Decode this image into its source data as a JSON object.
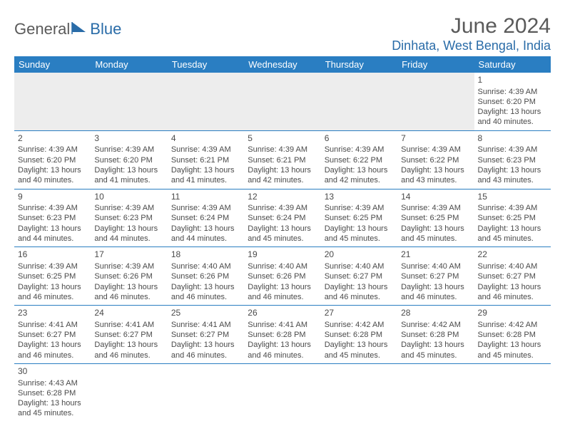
{
  "logo": {
    "text1": "General",
    "text2": "Blue"
  },
  "colors": {
    "header_bg": "#2a7ec2",
    "header_text": "#ffffff",
    "accent": "#2a6ca8",
    "body_text": "#4a4a4a",
    "grid_line": "#2a7ec2",
    "alt_bg": "#ededed"
  },
  "title": "June 2024",
  "location": "Dinhata, West Bengal, India",
  "weekdays": [
    "Sunday",
    "Monday",
    "Tuesday",
    "Wednesday",
    "Thursday",
    "Friday",
    "Saturday"
  ],
  "leading_blanks": 6,
  "days": [
    {
      "n": 1,
      "sunrise": "4:39 AM",
      "sunset": "6:20 PM",
      "daylight": "13 hours and 40 minutes."
    },
    {
      "n": 2,
      "sunrise": "4:39 AM",
      "sunset": "6:20 PM",
      "daylight": "13 hours and 40 minutes."
    },
    {
      "n": 3,
      "sunrise": "4:39 AM",
      "sunset": "6:20 PM",
      "daylight": "13 hours and 41 minutes."
    },
    {
      "n": 4,
      "sunrise": "4:39 AM",
      "sunset": "6:21 PM",
      "daylight": "13 hours and 41 minutes."
    },
    {
      "n": 5,
      "sunrise": "4:39 AM",
      "sunset": "6:21 PM",
      "daylight": "13 hours and 42 minutes."
    },
    {
      "n": 6,
      "sunrise": "4:39 AM",
      "sunset": "6:22 PM",
      "daylight": "13 hours and 42 minutes."
    },
    {
      "n": 7,
      "sunrise": "4:39 AM",
      "sunset": "6:22 PM",
      "daylight": "13 hours and 43 minutes."
    },
    {
      "n": 8,
      "sunrise": "4:39 AM",
      "sunset": "6:23 PM",
      "daylight": "13 hours and 43 minutes."
    },
    {
      "n": 9,
      "sunrise": "4:39 AM",
      "sunset": "6:23 PM",
      "daylight": "13 hours and 44 minutes."
    },
    {
      "n": 10,
      "sunrise": "4:39 AM",
      "sunset": "6:23 PM",
      "daylight": "13 hours and 44 minutes."
    },
    {
      "n": 11,
      "sunrise": "4:39 AM",
      "sunset": "6:24 PM",
      "daylight": "13 hours and 44 minutes."
    },
    {
      "n": 12,
      "sunrise": "4:39 AM",
      "sunset": "6:24 PM",
      "daylight": "13 hours and 45 minutes."
    },
    {
      "n": 13,
      "sunrise": "4:39 AM",
      "sunset": "6:25 PM",
      "daylight": "13 hours and 45 minutes."
    },
    {
      "n": 14,
      "sunrise": "4:39 AM",
      "sunset": "6:25 PM",
      "daylight": "13 hours and 45 minutes."
    },
    {
      "n": 15,
      "sunrise": "4:39 AM",
      "sunset": "6:25 PM",
      "daylight": "13 hours and 45 minutes."
    },
    {
      "n": 16,
      "sunrise": "4:39 AM",
      "sunset": "6:25 PM",
      "daylight": "13 hours and 46 minutes."
    },
    {
      "n": 17,
      "sunrise": "4:39 AM",
      "sunset": "6:26 PM",
      "daylight": "13 hours and 46 minutes."
    },
    {
      "n": 18,
      "sunrise": "4:40 AM",
      "sunset": "6:26 PM",
      "daylight": "13 hours and 46 minutes."
    },
    {
      "n": 19,
      "sunrise": "4:40 AM",
      "sunset": "6:26 PM",
      "daylight": "13 hours and 46 minutes."
    },
    {
      "n": 20,
      "sunrise": "4:40 AM",
      "sunset": "6:27 PM",
      "daylight": "13 hours and 46 minutes."
    },
    {
      "n": 21,
      "sunrise": "4:40 AM",
      "sunset": "6:27 PM",
      "daylight": "13 hours and 46 minutes."
    },
    {
      "n": 22,
      "sunrise": "4:40 AM",
      "sunset": "6:27 PM",
      "daylight": "13 hours and 46 minutes."
    },
    {
      "n": 23,
      "sunrise": "4:41 AM",
      "sunset": "6:27 PM",
      "daylight": "13 hours and 46 minutes."
    },
    {
      "n": 24,
      "sunrise": "4:41 AM",
      "sunset": "6:27 PM",
      "daylight": "13 hours and 46 minutes."
    },
    {
      "n": 25,
      "sunrise": "4:41 AM",
      "sunset": "6:27 PM",
      "daylight": "13 hours and 46 minutes."
    },
    {
      "n": 26,
      "sunrise": "4:41 AM",
      "sunset": "6:28 PM",
      "daylight": "13 hours and 46 minutes."
    },
    {
      "n": 27,
      "sunrise": "4:42 AM",
      "sunset": "6:28 PM",
      "daylight": "13 hours and 45 minutes."
    },
    {
      "n": 28,
      "sunrise": "4:42 AM",
      "sunset": "6:28 PM",
      "daylight": "13 hours and 45 minutes."
    },
    {
      "n": 29,
      "sunrise": "4:42 AM",
      "sunset": "6:28 PM",
      "daylight": "13 hours and 45 minutes."
    },
    {
      "n": 30,
      "sunrise": "4:43 AM",
      "sunset": "6:28 PM",
      "daylight": "13 hours and 45 minutes."
    }
  ],
  "labels": {
    "sunrise": "Sunrise:",
    "sunset": "Sunset:",
    "daylight": "Daylight:"
  }
}
